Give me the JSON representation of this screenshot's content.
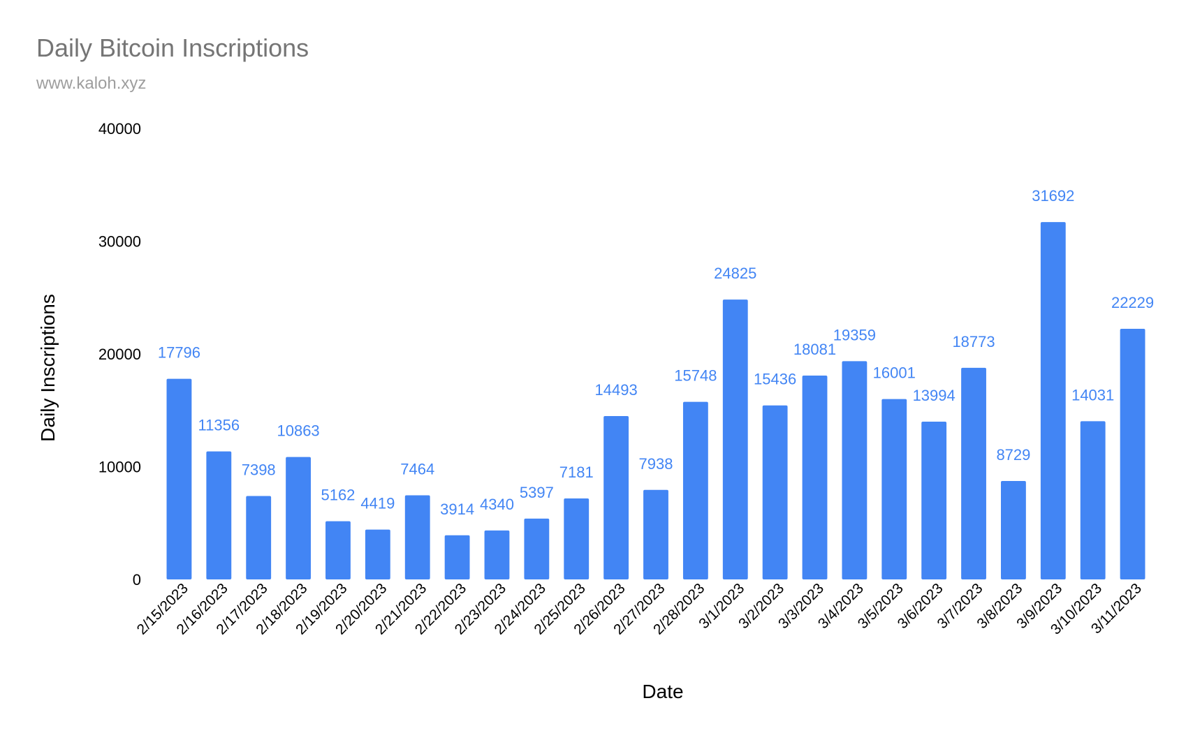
{
  "chart_data": {
    "type": "bar",
    "title": "Daily Bitcoin Inscriptions",
    "subtitle": "www.kaloh.xyz",
    "xlabel": "Date",
    "ylabel": "Daily Inscriptions",
    "ylim": [
      0,
      40000
    ],
    "yticks": [
      0,
      10000,
      20000,
      30000,
      40000
    ],
    "grid": false,
    "legend": "none",
    "bar_color": "#4285f4",
    "label_color": "#4285f4",
    "categories": [
      "2/15/2023",
      "2/16/2023",
      "2/17/2023",
      "2/18/2023",
      "2/19/2023",
      "2/20/2023",
      "2/21/2023",
      "2/22/2023",
      "2/23/2023",
      "2/24/2023",
      "2/25/2023",
      "2/26/2023",
      "2/27/2023",
      "2/28/2023",
      "3/1/2023",
      "3/2/2023",
      "3/3/2023",
      "3/4/2023",
      "3/5/2023",
      "3/6/2023",
      "3/7/2023",
      "3/8/2023",
      "3/9/2023",
      "3/10/2023",
      "3/11/2023"
    ],
    "values": [
      17796,
      11356,
      7398,
      10863,
      5162,
      4419,
      7464,
      3914,
      4340,
      5397,
      7181,
      14493,
      7938,
      15748,
      24825,
      15436,
      18081,
      19359,
      16001,
      13994,
      18773,
      8729,
      31692,
      14031,
      22229
    ]
  }
}
